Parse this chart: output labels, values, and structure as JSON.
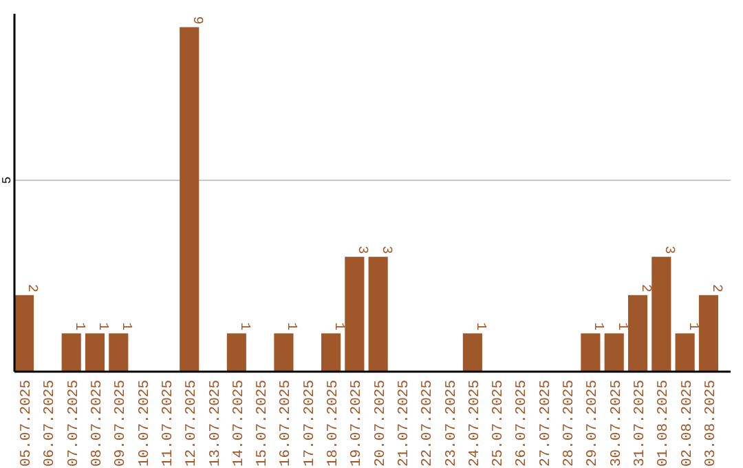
{
  "chart_data": {
    "type": "bar",
    "categories": [
      "05.07.2025",
      "06.07.2025",
      "07.07.2025",
      "08.07.2025",
      "09.07.2025",
      "10.07.2025",
      "11.07.2025",
      "12.07.2025",
      "13.07.2025",
      "14.07.2025",
      "15.07.2025",
      "16.07.2025",
      "17.07.2025",
      "18.07.2025",
      "19.07.2025",
      "20.07.2025",
      "21.07.2025",
      "22.07.2025",
      "23.07.2025",
      "24.07.2025",
      "25.07.2025",
      "26.07.2025",
      "27.07.2025",
      "28.07.2025",
      "29.07.2025",
      "30.07.2025",
      "31.07.2025",
      "01.08.2025",
      "02.08.2025",
      "03.08.2025"
    ],
    "values": [
      2,
      0,
      1,
      1,
      1,
      0,
      0,
      9,
      0,
      1,
      0,
      1,
      0,
      1,
      3,
      3,
      0,
      0,
      0,
      1,
      0,
      0,
      0,
      0,
      1,
      1,
      2,
      3,
      1,
      2
    ],
    "value_labels": [
      "2",
      null,
      "1",
      "1",
      "1",
      null,
      null,
      "9",
      null,
      "1",
      null,
      "1",
      null,
      "1",
      "3",
      "3",
      null,
      null,
      null,
      "1",
      null,
      null,
      null,
      null,
      "1",
      "1",
      "2",
      "3",
      "1",
      "2"
    ],
    "color": "#a0582a",
    "ylim": [
      0,
      9.35
    ],
    "yticks": [
      5
    ],
    "grid": "y"
  }
}
